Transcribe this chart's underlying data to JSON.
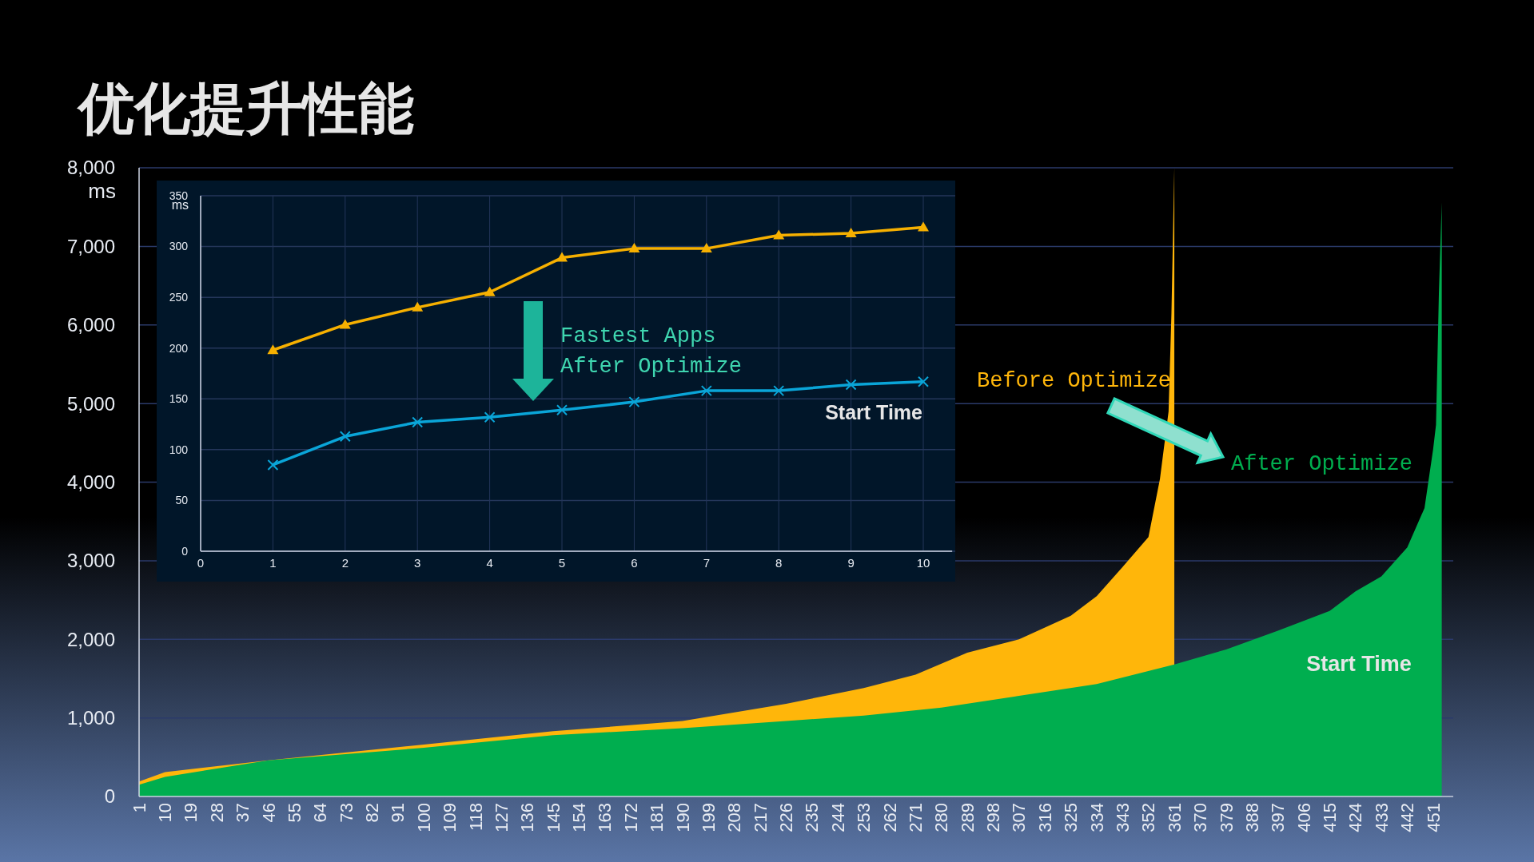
{
  "chart_data": [
    {
      "type": "area",
      "title": "优化提升性能",
      "ylabel": "ms",
      "xlim": [
        1,
        458
      ],
      "xticks": [
        1,
        10,
        19,
        28,
        37,
        46,
        55,
        64,
        73,
        82,
        91,
        100,
        109,
        118,
        127,
        136,
        145,
        154,
        163,
        172,
        181,
        190,
        199,
        208,
        217,
        226,
        235,
        244,
        253,
        262,
        271,
        280,
        289,
        298,
        307,
        316,
        325,
        334,
        343,
        352,
        361,
        370,
        379,
        388,
        397,
        406,
        415,
        424,
        433,
        442,
        451
      ],
      "ylim": [
        0,
        8000
      ],
      "yticks": [
        0,
        {
          "value": 1000,
          "label": "1,000"
        },
        {
          "value": 2000,
          "label": "2,000"
        },
        {
          "value": 3000,
          "label": "3,000"
        },
        {
          "value": 4000,
          "label": "4,000"
        },
        {
          "value": 5000,
          "label": "5,000"
        },
        {
          "value": 6000,
          "label": "6,000"
        },
        {
          "value": 7000,
          "label": "7,000"
        },
        {
          "value": 8000,
          "label": "8,000"
        }
      ],
      "grid": "y",
      "annotations": [
        "Start Time"
      ],
      "series": [
        {
          "name": "Before Optimize",
          "color": "#ffb60a",
          "x": [
            1,
            10,
            46,
            100,
            145,
            190,
            226,
            253,
            271,
            289,
            307,
            325,
            334,
            343,
            352,
            356,
            359,
            360,
            361
          ],
          "values": [
            190,
            310,
            460,
            660,
            830,
            960,
            1180,
            1380,
            1550,
            1830,
            2000,
            2300,
            2550,
            2920,
            3300,
            4040,
            4900,
            6150,
            8000
          ]
        },
        {
          "name": "After Optimize",
          "color": "#00ae4f",
          "x": [
            1,
            10,
            46,
            100,
            145,
            190,
            226,
            253,
            280,
            307,
            334,
            361,
            379,
            397,
            415,
            424,
            433,
            442,
            448,
            451,
            452,
            453,
            454
          ],
          "values": [
            150,
            250,
            460,
            620,
            780,
            870,
            960,
            1030,
            1130,
            1280,
            1430,
            1680,
            1870,
            2110,
            2360,
            2610,
            2800,
            3170,
            3670,
            4420,
            4730,
            6400,
            7560
          ]
        }
      ]
    },
    {
      "type": "line",
      "ylabel": "ms",
      "xlim": [
        0,
        10.4
      ],
      "xticks": [
        0,
        1,
        2,
        3,
        4,
        5,
        6,
        7,
        8,
        9,
        10
      ],
      "ylim": [
        0,
        350
      ],
      "yticks": [
        0,
        50,
        100,
        150,
        200,
        250,
        300,
        350
      ],
      "grid": true,
      "annotations": [
        "Fastest Apps\nAfter Optimize",
        "Start Time"
      ],
      "series": [
        {
          "color": "#f6b000",
          "marker": "triangle",
          "x": [
            1,
            2,
            3,
            4,
            5,
            6,
            7,
            8,
            9,
            10
          ],
          "values": [
            198,
            223,
            240,
            255,
            289,
            298,
            298,
            311,
            313,
            319
          ]
        },
        {
          "color": "#0aa5d8",
          "marker": "cross",
          "x": [
            1,
            2,
            3,
            4,
            5,
            6,
            7,
            8,
            9,
            10
          ],
          "values": [
            85,
            113,
            127,
            132,
            139,
            147,
            158,
            158,
            164,
            167
          ]
        }
      ]
    }
  ]
}
